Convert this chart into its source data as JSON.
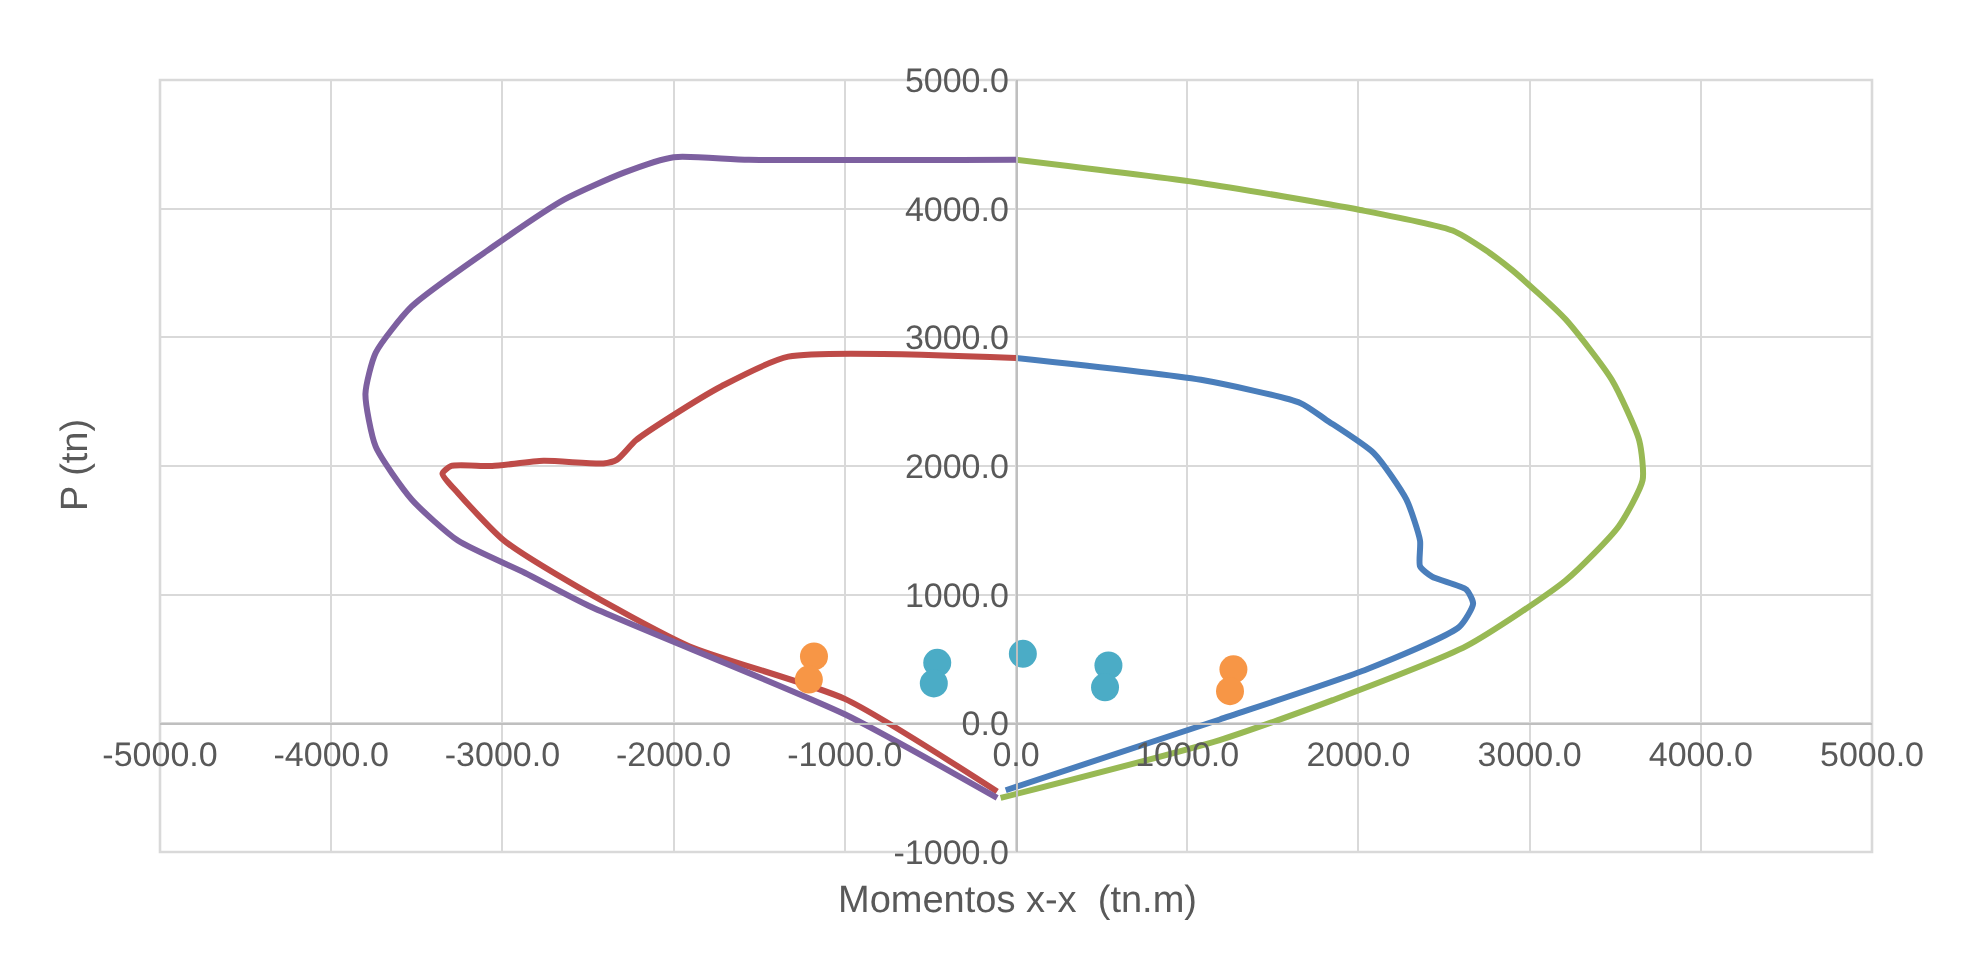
{
  "chart_data": {
    "type": "line",
    "xlabel": "Momentos x-x  (tn.m)",
    "ylabel": "P (tn)",
    "xlim": [
      -5000,
      5000
    ],
    "xticks": [
      {
        "value": -5000,
        "label": "-5000.0"
      },
      {
        "value": -4000,
        "label": "-4000.0"
      },
      {
        "value": -3000,
        "label": "-3000.0"
      },
      {
        "value": -2000,
        "label": "-2000.0"
      },
      {
        "value": -1000,
        "label": "-1000.0"
      },
      {
        "value": 0,
        "label": "0.0"
      },
      {
        "value": 1000,
        "label": "1000.0"
      },
      {
        "value": 2000,
        "label": "2000.0"
      },
      {
        "value": 3000,
        "label": "3000.0"
      },
      {
        "value": 4000,
        "label": "4000.0"
      },
      {
        "value": 5000,
        "label": "5000.0"
      }
    ],
    "ylim": [
      -1000,
      5000
    ],
    "yticks": [
      {
        "value": -1000,
        "label": "-1000.0"
      },
      {
        "value": 0,
        "label": "0.0"
      },
      {
        "value": 1000,
        "label": "1000.0"
      },
      {
        "value": 2000,
        "label": "2000.0"
      },
      {
        "value": 3000,
        "label": "3000.0"
      },
      {
        "value": 4000,
        "label": "4000.0"
      },
      {
        "value": 5000,
        "label": "5000.0"
      }
    ],
    "grid": true,
    "line_style": "solid",
    "marker": "none",
    "series": [
      {
        "color": "#4a7ebb",
        "x": [
          0,
          1080,
          1660,
          1810,
          2090,
          2280,
          2360,
          2360,
          2430,
          2630,
          2670,
          2590,
          2050,
          1190,
          -60
        ],
        "values": [
          2840,
          2670,
          2490,
          2360,
          2100,
          1740,
          1420,
          1220,
          1140,
          1040,
          930,
          750,
          420,
          30,
          -520
        ]
      },
      {
        "color": "#be4b48",
        "x": [
          0,
          -1330,
          -1720,
          -2020,
          -2220,
          -2330,
          -2410,
          -2760,
          -3060,
          -3300,
          -3350,
          -3260,
          -2990,
          -2560,
          -1910,
          -1000,
          -110
        ],
        "values": [
          2840,
          2850,
          2620,
          2380,
          2200,
          2050,
          2020,
          2040,
          2000,
          2000,
          1940,
          1790,
          1420,
          1060,
          600,
          190,
          -530
        ]
      },
      {
        "color": "#98b954",
        "x": [
          0,
          1080,
          2010,
          2550,
          2740,
          2900,
          3210,
          3480,
          3640,
          3660,
          3520,
          3210,
          2630,
          1850,
          1190,
          -90
        ],
        "values": [
          4380,
          4200,
          3990,
          3830,
          3680,
          3520,
          3140,
          2670,
          2200,
          1890,
          1530,
          1110,
          600,
          180,
          -130,
          -580
        ]
      },
      {
        "color": "#7d60a0",
        "x": [
          0,
          -1560,
          -2000,
          -2290,
          -2640,
          -3060,
          -3530,
          -3740,
          -3800,
          -3740,
          -3530,
          -3260,
          -2870,
          -2490,
          -1000,
          -110
        ],
        "values": [
          4380,
          4380,
          4400,
          4280,
          4070,
          3700,
          3240,
          2880,
          2560,
          2150,
          1740,
          1420,
          1170,
          910,
          70,
          -580
        ]
      },
      {
        "type": "scatter",
        "marker": "circle",
        "color": "#f79646",
        "x": [
          -1180,
          -1210,
          1270,
          1250
        ],
        "values": [
          520,
          340,
          420,
          250
        ]
      },
      {
        "type": "scatter",
        "marker": "circle",
        "color": "#4bacc6",
        "x": [
          -460,
          -480,
          40,
          540,
          520
        ],
        "values": [
          470,
          310,
          540,
          450,
          280
        ]
      }
    ]
  }
}
